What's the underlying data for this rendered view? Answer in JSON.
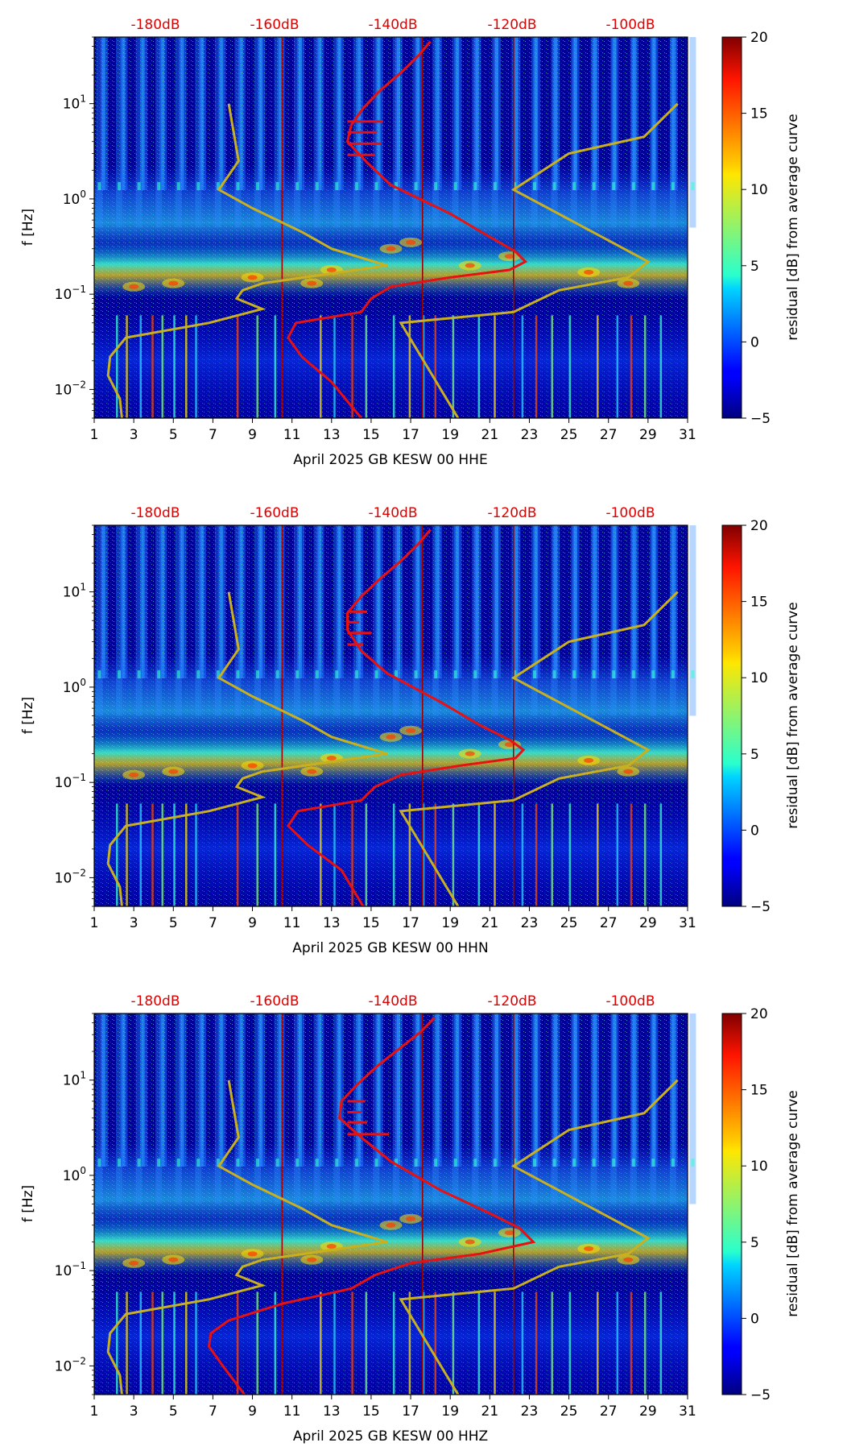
{
  "chart_data": [
    {
      "type": "heatmap",
      "xlabel": "April 2025 GB KESW 00 HHE",
      "ylabel": "f [Hz]",
      "x_ticks": [
        "1",
        "3",
        "5",
        "7",
        "9",
        "11",
        "13",
        "15",
        "17",
        "19",
        "21",
        "23",
        "25",
        "27",
        "29",
        "31"
      ],
      "xlim": [
        1,
        31
      ],
      "y_scale": "log",
      "ylim": [
        0.005,
        50
      ],
      "y_ticks": [
        {
          "base": "10",
          "exp": "1"
        },
        {
          "base": "10",
          "exp": "0"
        },
        {
          "base": "10",
          "exp": "−1"
        },
        {
          "base": "10",
          "exp": "−2"
        }
      ],
      "top_db_labels": [
        "-180dB",
        "-160dB",
        "-140dB",
        "-120dB",
        "-100dB"
      ],
      "colorbar": {
        "label": "residual [dB] from average curve",
        "ticks": [
          "20",
          "15",
          "10",
          "5",
          "0",
          "−5"
        ],
        "range": [
          -5,
          20
        ]
      },
      "red_curve": [
        [
          14.5,
          0.005
        ],
        [
          13,
          0.012
        ],
        [
          11.5,
          0.022
        ],
        [
          10.8,
          0.035
        ],
        [
          11.2,
          0.05
        ],
        [
          14.5,
          0.065
        ],
        [
          15,
          0.09
        ],
        [
          16,
          0.12
        ],
        [
          19,
          0.15
        ],
        [
          22,
          0.18
        ],
        [
          22.8,
          0.22
        ],
        [
          22.3,
          0.28
        ],
        [
          21,
          0.4
        ],
        [
          19,
          0.7
        ],
        [
          16,
          1.4
        ],
        [
          14.8,
          2.4
        ],
        [
          13.8,
          4
        ],
        [
          14,
          6
        ],
        [
          14.6,
          9
        ],
        [
          15.5,
          14
        ],
        [
          16.6,
          22
        ],
        [
          17.4,
          32
        ],
        [
          18,
          45
        ]
      ],
      "red_spikes": [
        [
          15.2,
          2.9
        ],
        [
          15.5,
          3.8
        ],
        [
          15.3,
          5
        ],
        [
          15.6,
          6.5
        ]
      ],
      "gold_curve": {
        "left": [
          [
            2.4,
            0.005
          ],
          [
            2.3,
            0.008
          ],
          [
            1.7,
            0.014
          ],
          [
            1.8,
            0.022
          ],
          [
            2.6,
            0.035
          ],
          [
            6.8,
            0.05
          ],
          [
            9.5,
            0.07
          ],
          [
            8.2,
            0.09
          ],
          [
            8.5,
            0.11
          ],
          [
            9.5,
            0.13
          ],
          [
            15.8,
            0.2
          ],
          [
            13,
            0.3
          ],
          [
            11.5,
            0.45
          ],
          [
            9,
            0.8
          ],
          [
            7.3,
            1.25
          ],
          [
            8.3,
            2.5
          ],
          [
            7.8,
            10
          ]
        ],
        "right": [
          [
            19.4,
            0.005
          ],
          [
            16.5,
            0.05
          ],
          [
            22.2,
            0.065
          ],
          [
            24.5,
            0.11
          ],
          [
            28,
            0.15
          ],
          [
            29,
            0.22
          ],
          [
            22.2,
            1.25
          ],
          [
            25,
            3
          ],
          [
            28.8,
            4.5
          ],
          [
            30.5,
            10
          ]
        ]
      }
    },
    {
      "type": "heatmap",
      "xlabel": "April 2025 GB KESW 00 HHN",
      "ylabel": "f [Hz]",
      "x_ticks": [
        "1",
        "3",
        "5",
        "7",
        "9",
        "11",
        "13",
        "15",
        "17",
        "19",
        "21",
        "23",
        "25",
        "27",
        "29",
        "31"
      ],
      "xlim": [
        1,
        31
      ],
      "y_scale": "log",
      "ylim": [
        0.005,
        50
      ],
      "y_ticks": [
        {
          "base": "10",
          "exp": "1"
        },
        {
          "base": "10",
          "exp": "0"
        },
        {
          "base": "10",
          "exp": "−1"
        },
        {
          "base": "10",
          "exp": "−2"
        }
      ],
      "top_db_labels": [
        "-180dB",
        "-160dB",
        "-140dB",
        "-120dB",
        "-100dB"
      ],
      "colorbar": {
        "label": "residual [dB] from average curve",
        "ticks": [
          "20",
          "15",
          "10",
          "5",
          "0",
          "−5"
        ],
        "range": [
          -5,
          20
        ]
      },
      "red_curve": [
        [
          14.6,
          0.005
        ],
        [
          13.5,
          0.012
        ],
        [
          11.8,
          0.022
        ],
        [
          10.8,
          0.035
        ],
        [
          11.3,
          0.05
        ],
        [
          14.5,
          0.065
        ],
        [
          15.2,
          0.09
        ],
        [
          16.5,
          0.12
        ],
        [
          19.5,
          0.15
        ],
        [
          22.3,
          0.18
        ],
        [
          22.7,
          0.22
        ],
        [
          22,
          0.28
        ],
        [
          20.5,
          0.4
        ],
        [
          18.5,
          0.7
        ],
        [
          15.8,
          1.4
        ],
        [
          14.5,
          2.4
        ],
        [
          13.8,
          4
        ],
        [
          13.8,
          6
        ],
        [
          14.5,
          9
        ],
        [
          15.5,
          14
        ],
        [
          16.6,
          22
        ],
        [
          17.4,
          32
        ],
        [
          18,
          45
        ]
      ],
      "red_spikes": [
        [
          14.6,
          2.8
        ],
        [
          15,
          3.7
        ],
        [
          14.4,
          4.8
        ],
        [
          14.8,
          6.2
        ]
      ],
      "gold_curve": {
        "left": [
          [
            2.4,
            0.005
          ],
          [
            2.3,
            0.008
          ],
          [
            1.7,
            0.014
          ],
          [
            1.8,
            0.022
          ],
          [
            2.6,
            0.035
          ],
          [
            6.8,
            0.05
          ],
          [
            9.5,
            0.07
          ],
          [
            8.2,
            0.09
          ],
          [
            8.5,
            0.11
          ],
          [
            9.5,
            0.13
          ],
          [
            15.8,
            0.2
          ],
          [
            13,
            0.3
          ],
          [
            11.5,
            0.45
          ],
          [
            9,
            0.8
          ],
          [
            7.3,
            1.25
          ],
          [
            8.3,
            2.5
          ],
          [
            7.8,
            10
          ]
        ],
        "right": [
          [
            19.4,
            0.005
          ],
          [
            16.5,
            0.05
          ],
          [
            22.2,
            0.065
          ],
          [
            24.5,
            0.11
          ],
          [
            28,
            0.15
          ],
          [
            29,
            0.22
          ],
          [
            22.2,
            1.25
          ],
          [
            25,
            3
          ],
          [
            28.8,
            4.5
          ],
          [
            30.5,
            10
          ]
        ]
      }
    },
    {
      "type": "heatmap",
      "xlabel": "April 2025 GB KESW 00 HHZ",
      "ylabel": "f [Hz]",
      "x_ticks": [
        "1",
        "3",
        "5",
        "7",
        "9",
        "11",
        "13",
        "15",
        "17",
        "19",
        "21",
        "23",
        "25",
        "27",
        "29",
        "31"
      ],
      "xlim": [
        1,
        31
      ],
      "y_scale": "log",
      "ylim": [
        0.005,
        50
      ],
      "y_ticks": [
        {
          "base": "10",
          "exp": "1"
        },
        {
          "base": "10",
          "exp": "0"
        },
        {
          "base": "10",
          "exp": "−1"
        },
        {
          "base": "10",
          "exp": "−2"
        }
      ],
      "top_db_labels": [
        "-180dB",
        "-160dB",
        "-140dB",
        "-120dB",
        "-100dB"
      ],
      "colorbar": {
        "label": "residual [dB] from average curve",
        "ticks": [
          "20",
          "15",
          "10",
          "5",
          "0",
          "−5"
        ],
        "range": [
          -5,
          20
        ]
      },
      "red_curve": [
        [
          8.6,
          0.005
        ],
        [
          7.5,
          0.01
        ],
        [
          6.8,
          0.016
        ],
        [
          6.9,
          0.022
        ],
        [
          7.8,
          0.03
        ],
        [
          10.5,
          0.045
        ],
        [
          14,
          0.065
        ],
        [
          15.2,
          0.09
        ],
        [
          17,
          0.12
        ],
        [
          20.5,
          0.15
        ],
        [
          23.2,
          0.2
        ],
        [
          22.5,
          0.28
        ],
        [
          21,
          0.4
        ],
        [
          18.5,
          0.7
        ],
        [
          16,
          1.4
        ],
        [
          14.5,
          2.5
        ],
        [
          13.4,
          4
        ],
        [
          13.5,
          6
        ],
        [
          14.3,
          9
        ],
        [
          15.3,
          14
        ],
        [
          16.5,
          22
        ],
        [
          17.5,
          32
        ],
        [
          18.2,
          45
        ]
      ],
      "red_spikes": [
        [
          15.9,
          2.7
        ],
        [
          14.8,
          3.6
        ],
        [
          14.5,
          4.6
        ],
        [
          14.7,
          6
        ]
      ],
      "gold_curve": {
        "left": [
          [
            2.4,
            0.005
          ],
          [
            2.3,
            0.008
          ],
          [
            1.7,
            0.014
          ],
          [
            1.8,
            0.022
          ],
          [
            2.6,
            0.035
          ],
          [
            6.8,
            0.05
          ],
          [
            9.5,
            0.07
          ],
          [
            8.2,
            0.09
          ],
          [
            8.5,
            0.11
          ],
          [
            9.5,
            0.13
          ],
          [
            15.8,
            0.2
          ],
          [
            13,
            0.3
          ],
          [
            11.5,
            0.45
          ],
          [
            9,
            0.8
          ],
          [
            7.3,
            1.25
          ],
          [
            8.3,
            2.5
          ],
          [
            7.8,
            10
          ]
        ],
        "right": [
          [
            19.4,
            0.005
          ],
          [
            16.5,
            0.05
          ],
          [
            22.2,
            0.065
          ],
          [
            24.5,
            0.11
          ],
          [
            28,
            0.15
          ],
          [
            29,
            0.22
          ],
          [
            22.2,
            1.25
          ],
          [
            25,
            3
          ],
          [
            28.8,
            4.5
          ],
          [
            30.5,
            10
          ]
        ]
      }
    }
  ]
}
